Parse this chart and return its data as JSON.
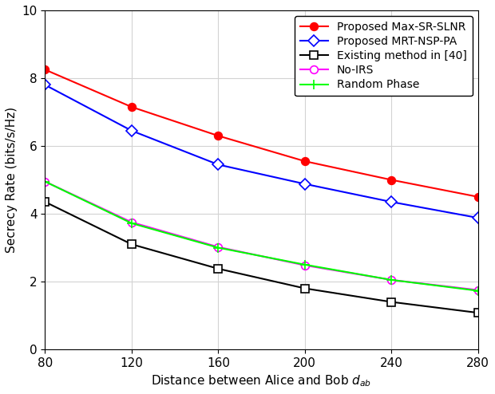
{
  "x": [
    80,
    120,
    160,
    200,
    240,
    280
  ],
  "series": [
    {
      "label": "Proposed Max-SR-SLNR",
      "color": "#ff0000",
      "marker": "o",
      "markerfacecolor": "#ff0000",
      "markeredgecolor": "#ff0000",
      "markersize": 7,
      "linewidth": 1.5,
      "values": [
        8.25,
        7.15,
        6.3,
        5.55,
        5.0,
        4.5
      ]
    },
    {
      "label": "Proposed MRT-NSP-PA",
      "color": "#0000ff",
      "marker": "D",
      "markerfacecolor": "#ffffff",
      "markeredgecolor": "#0000ff",
      "markersize": 7,
      "linewidth": 1.5,
      "values": [
        7.8,
        6.45,
        5.45,
        4.88,
        4.35,
        3.88
      ]
    },
    {
      "label": "Existing method in [40]",
      "color": "#000000",
      "marker": "s",
      "markerfacecolor": "#ffffff",
      "markeredgecolor": "#000000",
      "markersize": 7,
      "linewidth": 1.5,
      "values": [
        4.35,
        3.1,
        2.38,
        1.8,
        1.4,
        1.08
      ]
    },
    {
      "label": "No-IRS",
      "color": "#ff00ff",
      "marker": "o",
      "markerfacecolor": "#ffffff",
      "markeredgecolor": "#ff00ff",
      "markersize": 7,
      "linewidth": 1.5,
      "values": [
        4.95,
        3.75,
        3.02,
        2.48,
        2.05,
        1.75
      ]
    },
    {
      "label": "Random Phase",
      "color": "#00ff00",
      "marker": "+",
      "markerfacecolor": "#00ff00",
      "markeredgecolor": "#00ff00",
      "markersize": 9,
      "linewidth": 1.5,
      "values": [
        4.95,
        3.72,
        3.0,
        2.5,
        2.05,
        1.73
      ]
    }
  ],
  "xlabel": "Distance between Alice and Bob $d_{ab}$",
  "ylabel": "Secrecy Rate (bits/s/Hz)",
  "xlim": [
    80,
    280
  ],
  "ylim": [
    0,
    10
  ],
  "xticks": [
    80,
    120,
    160,
    200,
    240,
    280
  ],
  "yticks": [
    0,
    2,
    4,
    6,
    8,
    10
  ],
  "legend_loc": "upper right",
  "legend_fontsize": 10,
  "xlabel_fontsize": 11,
  "ylabel_fontsize": 11,
  "tick_labelsize": 11,
  "grid_color": "#d3d3d3",
  "grid_linewidth": 0.8,
  "background_color": "#ffffff"
}
